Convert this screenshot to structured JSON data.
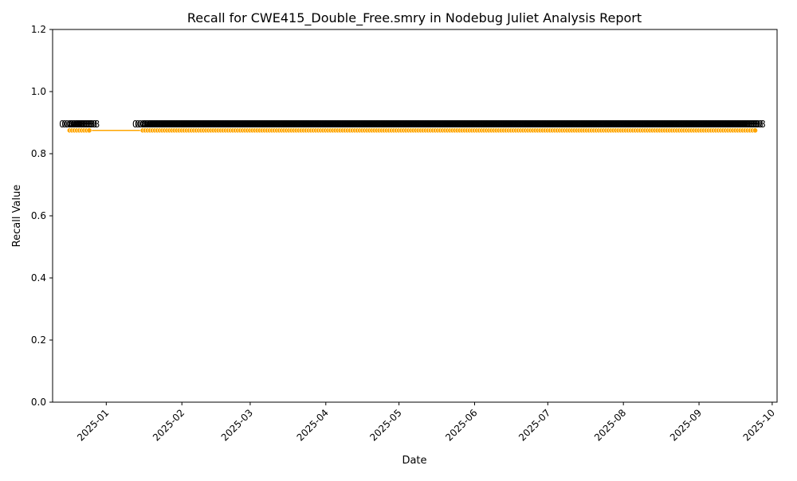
{
  "chart_data": {
    "type": "line",
    "title": "Recall for CWE415_Double_Free.smry in Nodebug Juliet Analysis Report",
    "xlabel": "Date",
    "ylabel": "Recall Value",
    "ylim": [
      0.0,
      1.2
    ],
    "xlim": [
      "2024-12-10",
      "2025-10-03"
    ],
    "y_ticks": [
      "0.0",
      "0.2",
      "0.4",
      "0.6",
      "0.8",
      "1.0",
      "1.2"
    ],
    "x_ticks": [
      "2025-01",
      "2025-02",
      "2025-03",
      "2025-04",
      "2025-05",
      "2025-06",
      "2025-07",
      "2025-08",
      "2025-09",
      "2025-10"
    ],
    "grid": false,
    "legend": "none",
    "series_color": "#ffa500",
    "point_label": "0.88",
    "segments": [
      {
        "start": "2024-12-17",
        "end": "2024-12-25",
        "value": 0.875
      },
      {
        "start": "2025-01-16",
        "end": "2025-09-24",
        "value": 0.875
      }
    ]
  }
}
